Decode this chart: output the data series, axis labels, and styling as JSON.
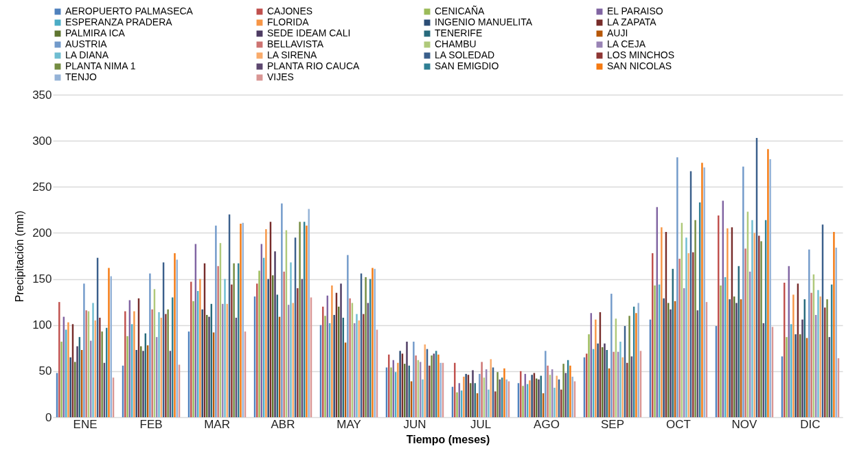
{
  "chart_data": {
    "type": "bar",
    "xlabel": "Tiempo (meses)",
    "ylabel": "Precipitación (mm)",
    "categories": [
      "ENE",
      "FEB",
      "MAR",
      "ABR",
      "MAY",
      "JUN",
      "JUL",
      "AGO",
      "SEP",
      "OCT",
      "NOV",
      "DIC"
    ],
    "ylim": [
      0,
      350
    ],
    "yticks": [
      0,
      50,
      100,
      150,
      200,
      250,
      300,
      350
    ],
    "grid": "y",
    "legend": "top",
    "series": [
      {
        "name": "AEROPUERTO PALMASECA",
        "color": "#4f81bd",
        "values": [
          48,
          56,
          93,
          131,
          100,
          54,
          33,
          37,
          65,
          106,
          99,
          66
        ]
      },
      {
        "name": "CAJONES",
        "color": "#c0504d",
        "values": [
          125,
          115,
          147,
          145,
          120,
          68,
          59,
          50,
          69,
          178,
          219,
          146
        ]
      },
      {
        "name": "CENICAÑA",
        "color": "#9bbb59",
        "values": [
          82,
          88,
          126,
          159,
          110,
          54,
          27,
          34,
          90,
          143,
          143,
          87
        ]
      },
      {
        "name": "EL PARAISO",
        "color": "#8064a2",
        "values": [
          109,
          127,
          188,
          188,
          132,
          62,
          37,
          47,
          113,
          228,
          235,
          164
        ]
      },
      {
        "name": "ESPERANZA PRADERA",
        "color": "#4bacc6",
        "values": [
          95,
          101,
          137,
          173,
          102,
          49,
          29,
          36,
          74,
          144,
          152,
          101
        ]
      },
      {
        "name": "FLORIDA",
        "color": "#f79646",
        "values": [
          103,
          115,
          150,
          204,
          143,
          59,
          44,
          40,
          106,
          206,
          205,
          133
        ]
      },
      {
        "name": "INGENIO MANUELITA",
        "color": "#2c4d75",
        "values": [
          65,
          73,
          117,
          150,
          111,
          72,
          47,
          46,
          80,
          129,
          128,
          90
        ]
      },
      {
        "name": "LA ZAPATA",
        "color": "#772c2a",
        "values": [
          101,
          129,
          167,
          212,
          135,
          69,
          46,
          48,
          114,
          201,
          206,
          145
        ]
      },
      {
        "name": "PALMIRA ICA",
        "color": "#5f7530",
        "values": [
          60,
          77,
          111,
          154,
          120,
          58,
          37,
          42,
          76,
          124,
          131,
          90
        ]
      },
      {
        "name": "SEDE IDEAM CALI",
        "color": "#4d3b62",
        "values": [
          77,
          72,
          109,
          180,
          145,
          82,
          51,
          41,
          80,
          117,
          124,
          106
        ]
      },
      {
        "name": "TENERIFE",
        "color": "#276a7c",
        "values": [
          87,
          91,
          123,
          133,
          108,
          56,
          37,
          45,
          73,
          161,
          164,
          128
        ]
      },
      {
        "name": "AUJI",
        "color": "#b65708",
        "values": [
          73,
          78,
          92,
          109,
          81,
          39,
          26,
          26,
          53,
          126,
          128,
          86
        ]
      },
      {
        "name": "AUSTRIA",
        "color": "#729aca",
        "values": [
          145,
          156,
          208,
          232,
          176,
          82,
          47,
          72,
          134,
          282,
          272,
          182
        ]
      },
      {
        "name": "BELLAVISTA",
        "color": "#cd7371",
        "values": [
          116,
          117,
          164,
          158,
          129,
          67,
          60,
          56,
          71,
          172,
          183,
          135
        ]
      },
      {
        "name": "CHAMBU",
        "color": "#afc97a",
        "values": [
          115,
          139,
          189,
          203,
          124,
          62,
          43,
          46,
          107,
          211,
          223,
          155
        ]
      },
      {
        "name": "LA CEJA",
        "color": "#9983b5",
        "values": [
          83,
          87,
          123,
          122,
          102,
          60,
          52,
          52,
          71,
          140,
          158,
          111
        ]
      },
      {
        "name": "LA DIANA",
        "color": "#6fbdd1",
        "values": [
          124,
          114,
          150,
          168,
          112,
          41,
          30,
          32,
          82,
          195,
          214,
          138
        ]
      },
      {
        "name": "LA SIRENA",
        "color": "#f9ab6b",
        "values": [
          105,
          108,
          123,
          124,
          105,
          79,
          63,
          45,
          65,
          178,
          200,
          131
        ]
      },
      {
        "name": "LA SOLEDAD",
        "color": "#3a5f8b",
        "values": [
          173,
          168,
          220,
          195,
          156,
          74,
          54,
          41,
          99,
          267,
          303,
          209
        ]
      },
      {
        "name": "LOS MINCHOS",
        "color": "#8e3634",
        "values": [
          108,
          112,
          144,
          140,
          112,
          56,
          28,
          30,
          59,
          179,
          197,
          119
        ]
      },
      {
        "name": "PLANTA NIMA 1",
        "color": "#748c41",
        "values": [
          93,
          117,
          167,
          212,
          152,
          67,
          49,
          58,
          110,
          214,
          191,
          128
        ]
      },
      {
        "name": "PLANTA RIO CAUCA",
        "color": "#5c476f",
        "values": [
          59,
          72,
          108,
          150,
          124,
          69,
          41,
          48,
          66,
          116,
          102,
          87
        ]
      },
      {
        "name": "SAN EMIGDIO",
        "color": "#2f7f94",
        "values": [
          97,
          130,
          167,
          212,
          150,
          72,
          43,
          62,
          120,
          233,
          214,
          144
        ]
      },
      {
        "name": "SAN NICOLAS",
        "color": "#f57a12",
        "values": [
          162,
          178,
          210,
          208,
          162,
          68,
          53,
          56,
          113,
          276,
          291,
          201
        ]
      },
      {
        "name": "TENJO",
        "color": "#95b3d7",
        "values": [
          153,
          171,
          211,
          226,
          161,
          59,
          41,
          44,
          124,
          271,
          280,
          184
        ]
      },
      {
        "name": "VIJES",
        "color": "#d99694",
        "values": [
          43,
          57,
          93,
          130,
          95,
          59,
          39,
          39,
          72,
          125,
          98,
          64
        ]
      }
    ]
  }
}
